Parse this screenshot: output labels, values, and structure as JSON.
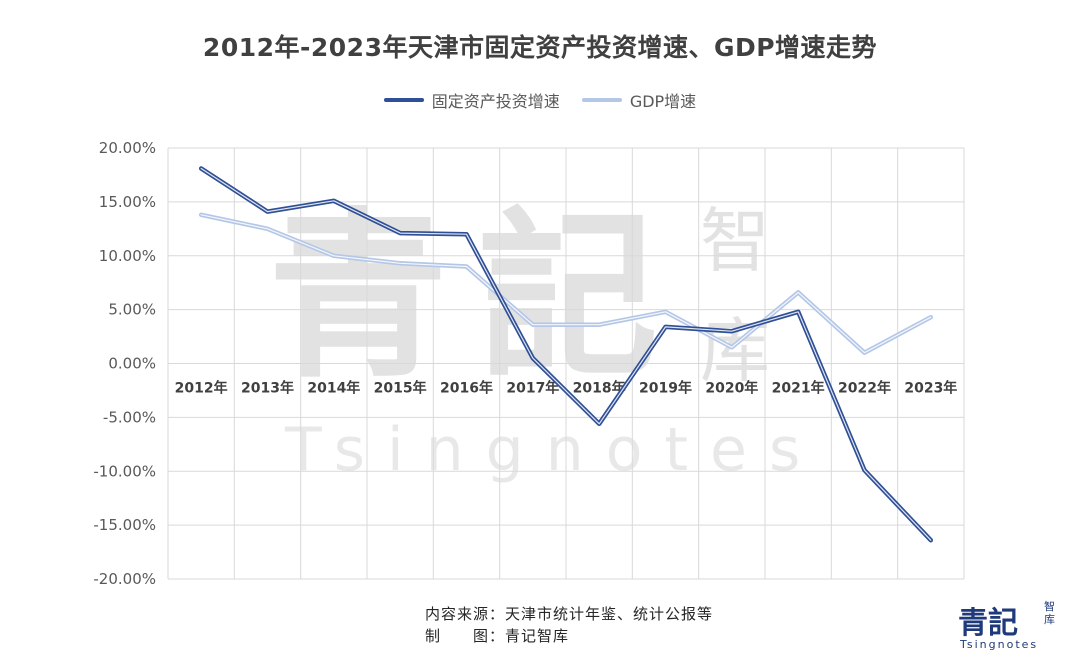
{
  "chart_data": {
    "type": "line",
    "title": "2012年-2023年天津市固定资产投资增速、GDP增速走势",
    "categories": [
      "2012年",
      "2013年",
      "2014年",
      "2015年",
      "2016年",
      "2017年",
      "2018年",
      "2019年",
      "2020年",
      "2021年",
      "2022年",
      "2023年"
    ],
    "series": [
      {
        "name": "固定资产投资增速",
        "values": [
          18.1,
          14.1,
          15.1,
          12.1,
          12.0,
          0.5,
          -5.6,
          3.4,
          3.0,
          4.8,
          -9.9,
          -16.4
        ],
        "color": "#2f4f96"
      },
      {
        "name": "GDP增速",
        "values": [
          13.8,
          12.5,
          10.0,
          9.3,
          9.0,
          3.6,
          3.6,
          4.8,
          1.5,
          6.6,
          1.0,
          4.3
        ],
        "color": "#b4c7e7"
      }
    ],
    "ylim": [
      -20,
      20
    ],
    "yticks": [
      "20.00%",
      "15.00%",
      "10.00%",
      "5.00%",
      "0.00%",
      "-5.00%",
      "-10.00%",
      "-15.00%",
      "-20.00%"
    ],
    "y_tick_values": [
      20,
      15,
      10,
      5,
      0,
      -5,
      -10,
      -15,
      -20
    ],
    "grid": true,
    "legend_position": "top-center"
  },
  "watermark": {
    "chars": [
      "青",
      "記",
      "智",
      "库"
    ],
    "latin": "Tsingnotes"
  },
  "footer": {
    "source_line": "内容来源：天津市统计年鉴、统计公报等",
    "maker_line": "制　　图：青记智库"
  },
  "brand": {
    "main": "青記",
    "side": "智库",
    "latin": "Tsingnotes"
  }
}
